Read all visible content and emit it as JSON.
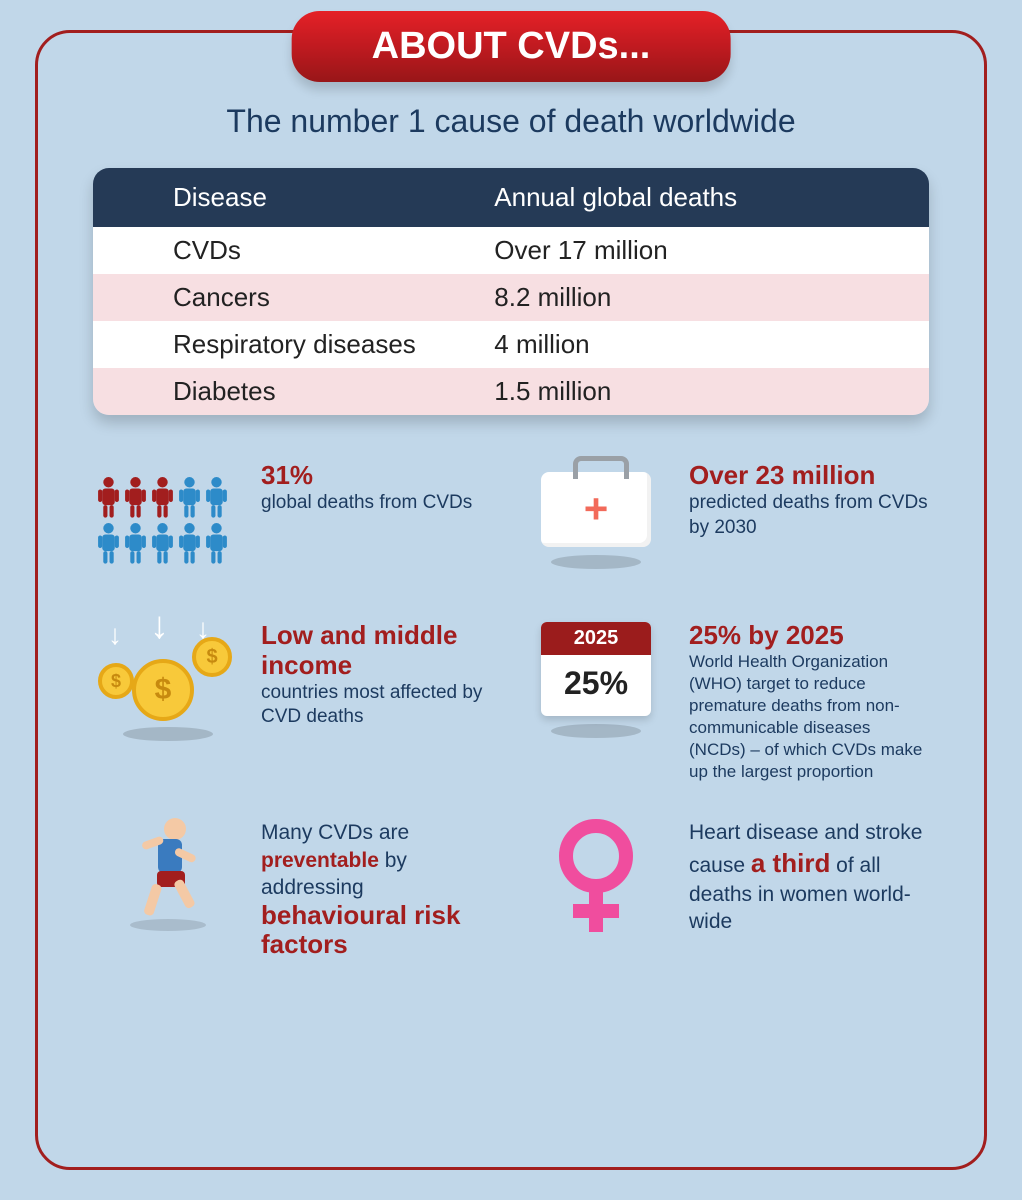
{
  "title": "ABOUT CVDs...",
  "subtitle": "The number 1 cause of death worldwide",
  "table": {
    "columns": [
      "Disease",
      "Annual global deaths"
    ],
    "rows": [
      [
        "CVDs",
        "Over 17 million"
      ],
      [
        "Cancers",
        "8.2 million"
      ],
      [
        "Respiratory diseases",
        "4 million"
      ],
      [
        "Diabetes",
        "1.5 million"
      ]
    ],
    "header_bg": "#253a56",
    "row_bg": "#ffffff",
    "row_alt_bg": "#f7dfe2",
    "text_color": "#222222",
    "header_text_color": "#ffffff",
    "fontsize_header": 26,
    "fontsize_row": 26
  },
  "facts": {
    "fact1": {
      "headline": "31%",
      "sub": "global deaths from CVDs",
      "people_total": 10,
      "people_highlighted": 3,
      "color_highlight": "#a21e1e",
      "color_normal": "#2d8bc9"
    },
    "fact2": {
      "headline": "Over 23 million",
      "sub": "predicted deaths from CVDs by 2030",
      "icon": "medkit",
      "cross_color": "#f26a5a"
    },
    "fact3": {
      "headline": "Low and middle income",
      "sub": "countries most affected by CVD deaths",
      "icon": "coins",
      "coin_color": "#f8c93a",
      "coin_border": "#e6a817",
      "arrow_color": "#ffffff"
    },
    "fact4": {
      "headline": "25% by 2025",
      "sub": "World Health Organization (WHO) target to reduce premature deaths from non-communicable diseases (NCDs) – of which CVDs make up the largest proportion",
      "calendar_year": "2025",
      "calendar_value": "25%",
      "cal_top_bg": "#9b1c1c"
    },
    "fact5": {
      "pre": "Many CVDs are ",
      "hl1": "preventable",
      "mid": " by addressing ",
      "hl2": "behavioural risk factors",
      "icon": "runner"
    },
    "fact6": {
      "pre": "Heart disease and stroke cause ",
      "hl": "a third",
      "post": " of all deaths in women world-wide",
      "icon": "female-symbol",
      "symbol_color": "#f04d9e"
    }
  },
  "colors": {
    "page_bg": "#c1d7e9",
    "border": "#a21e1e",
    "pill_gradient_top": "#e52127",
    "pill_gradient_bottom": "#981618",
    "dark_text": "#1c3a5f",
    "accent_red": "#a21e1e"
  }
}
